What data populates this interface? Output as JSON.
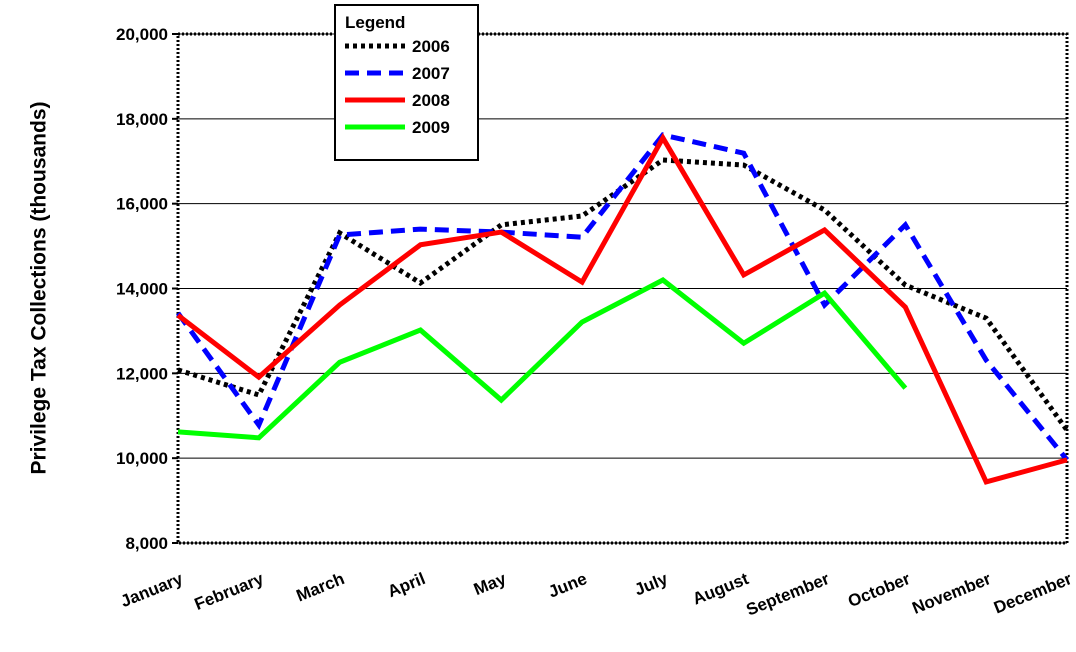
{
  "chart_data": {
    "type": "line",
    "y_label": "Privilege Tax Collections (thousands)",
    "legend_title": "Legend",
    "legend": "top-left",
    "grid": true,
    "categories": [
      "January",
      "February",
      "March",
      "April",
      "May",
      "June",
      "July",
      "August",
      "September",
      "October",
      "November",
      "December"
    ],
    "ylim": [
      8000,
      20000
    ],
    "yticks": [
      {
        "value": 8000,
        "label": "8,000"
      },
      {
        "value": 10000,
        "label": "10,000"
      },
      {
        "value": 12000,
        "label": "12,000"
      },
      {
        "value": 14000,
        "label": "14,000"
      },
      {
        "value": 16000,
        "label": "16,000"
      },
      {
        "value": 18000,
        "label": "18,000"
      },
      {
        "value": 20000,
        "label": "20,000"
      }
    ],
    "series": [
      {
        "name": "2006",
        "color": "#000000",
        "dash": "dotted",
        "values": [
          12080,
          11490,
          15310,
          14130,
          15500,
          15710,
          17030,
          16910,
          15850,
          14080,
          13300,
          10660
        ]
      },
      {
        "name": "2007",
        "color": "#0000ff",
        "dash": "dashed",
        "values": [
          13420,
          10780,
          15260,
          15400,
          15330,
          15210,
          17620,
          17190,
          13610,
          15500,
          12310,
          9960
        ]
      },
      {
        "name": "2008",
        "color": "#ff0000",
        "dash": "solid",
        "values": [
          13370,
          11910,
          13610,
          15030,
          15330,
          14150,
          17550,
          14320,
          15380,
          13560,
          9440,
          9960
        ]
      },
      {
        "name": "2009",
        "color": "#00ff00",
        "dash": "solid",
        "values": [
          10620,
          10480,
          12260,
          13020,
          11370,
          13210,
          14200,
          12710,
          13890,
          11650,
          null,
          null
        ]
      }
    ]
  }
}
